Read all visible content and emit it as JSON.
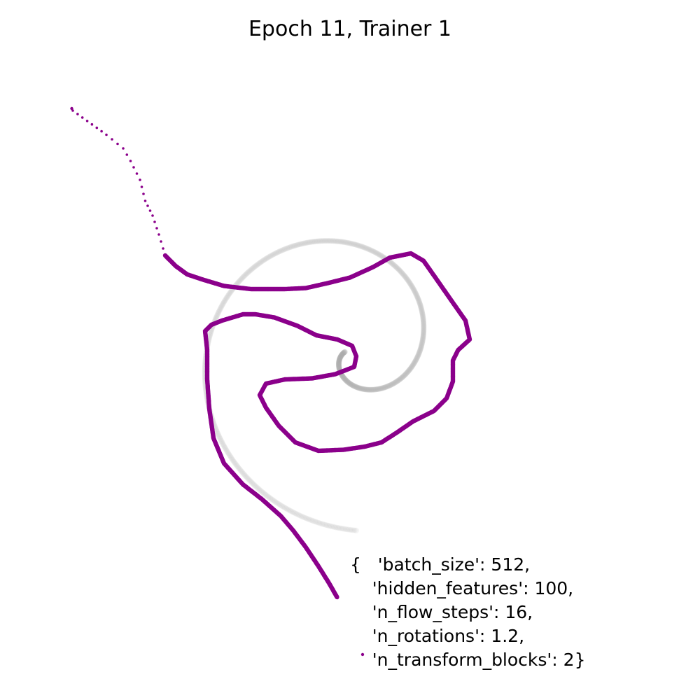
{
  "chart_data": {
    "type": "scatter",
    "title": "Epoch 11, Trainer 1",
    "grid": false,
    "axes_visible": false,
    "xlim": [
      -3.0,
      3.0
    ],
    "ylim": [
      -3.0,
      3.0
    ],
    "series": [
      {
        "role": "target spiral density",
        "color": "#b0b0b0",
        "spiral": {
          "r_start": 0.05,
          "r_end": 1.72,
          "theta_start_deg": 200,
          "n_rotations": 1.2,
          "direction": "counterclockwise"
        }
      },
      {
        "role": "generated samples",
        "color": "#8b008b",
        "points": [
          [
            -2.64,
            2.28
          ],
          [
            -2.32,
            2.05
          ],
          [
            -2.16,
            1.92
          ],
          [
            -2.09,
            1.8
          ],
          [
            -2.0,
            1.62
          ],
          [
            -1.95,
            1.42
          ],
          [
            -1.88,
            1.28
          ],
          [
            -1.82,
            1.1
          ],
          [
            -1.76,
            0.9
          ],
          [
            -1.66,
            0.8
          ],
          [
            -1.55,
            0.72
          ],
          [
            -1.4,
            0.67
          ],
          [
            -1.2,
            0.61
          ],
          [
            -0.94,
            0.58
          ],
          [
            -0.62,
            0.58
          ],
          [
            -0.42,
            0.59
          ],
          [
            -0.2,
            0.64
          ],
          [
            0.0,
            0.69
          ],
          [
            0.22,
            0.79
          ],
          [
            0.38,
            0.88
          ],
          [
            0.58,
            0.92
          ],
          [
            0.7,
            0.85
          ],
          [
            0.82,
            0.68
          ],
          [
            0.98,
            0.45
          ],
          [
            1.1,
            0.28
          ],
          [
            1.14,
            0.1
          ],
          [
            1.03,
            0.0
          ],
          [
            0.98,
            -0.1
          ],
          [
            0.98,
            -0.3
          ],
          [
            0.92,
            -0.46
          ],
          [
            0.8,
            -0.58
          ],
          [
            0.6,
            -0.68
          ],
          [
            0.44,
            -0.79
          ],
          [
            0.3,
            -0.88
          ],
          [
            0.14,
            -0.92
          ],
          [
            -0.06,
            -0.95
          ],
          [
            -0.3,
            -0.96
          ],
          [
            -0.52,
            -0.88
          ],
          [
            -0.68,
            -0.72
          ],
          [
            -0.8,
            -0.55
          ],
          [
            -0.86,
            -0.43
          ],
          [
            -0.8,
            -0.32
          ],
          [
            -0.62,
            -0.28
          ],
          [
            -0.36,
            -0.27
          ],
          [
            -0.14,
            -0.23
          ],
          [
            0.04,
            -0.16
          ],
          [
            0.06,
            -0.06
          ],
          [
            0.02,
            0.04
          ],
          [
            -0.12,
            0.1
          ],
          [
            -0.32,
            0.14
          ],
          [
            -0.5,
            0.23
          ],
          [
            -0.72,
            0.31
          ],
          [
            -0.9,
            0.34
          ],
          [
            -1.02,
            0.34
          ],
          [
            -1.22,
            0.28
          ],
          [
            -1.32,
            0.24
          ],
          [
            -1.38,
            0.18
          ],
          [
            -1.36,
            0.0
          ],
          [
            -1.36,
            -0.28
          ],
          [
            -1.34,
            -0.56
          ],
          [
            -1.3,
            -0.84
          ],
          [
            -1.2,
            -1.08
          ],
          [
            -1.02,
            -1.28
          ],
          [
            -0.84,
            -1.42
          ],
          [
            -0.66,
            -1.58
          ],
          [
            -0.54,
            -1.72
          ],
          [
            -0.42,
            -1.88
          ],
          [
            -0.3,
            -2.06
          ],
          [
            -0.2,
            -2.22
          ],
          [
            -0.12,
            -2.36
          ]
        ],
        "outliers": [
          [
            -2.65,
            2.3
          ],
          [
            0.12,
            -2.9
          ]
        ]
      }
    ],
    "annotation_lines": [
      "{   'batch_size': 512,",
      "    'hidden_features': 100,",
      "    'n_flow_steps': 16,",
      "    'n_rotations': 1.2,",
      "    'n_transform_blocks': 2}"
    ]
  }
}
